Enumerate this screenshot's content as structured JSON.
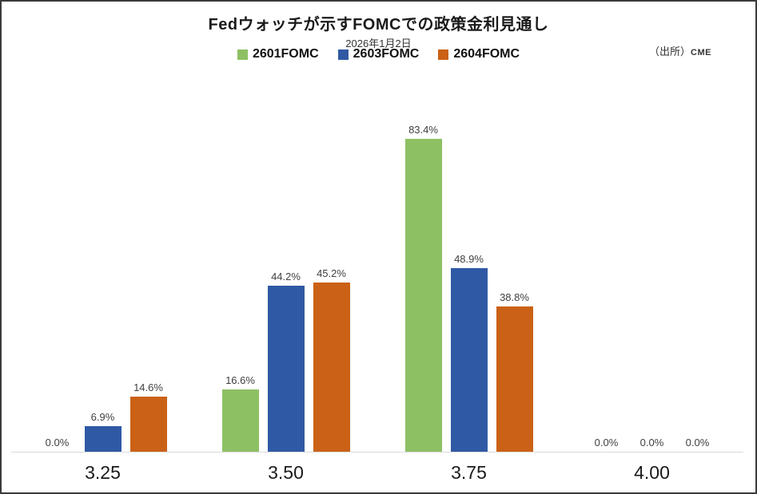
{
  "window": {
    "background": "#ffffff",
    "border_color": "#3a3a3a"
  },
  "chart_data": {
    "type": "bar",
    "title": "Fedウォッチが示すFOMCでの政策金利見通し",
    "subtitle": "2026年1月2日",
    "source_label": "（出所）",
    "source_value": "CME",
    "categories": [
      "3.25",
      "3.50",
      "3.75",
      "4.00"
    ],
    "series": [
      {
        "name": "2601FOMC",
        "color": "#8DC063",
        "values": [
          0.0,
          16.6,
          83.4,
          0.0
        ]
      },
      {
        "name": "2603FOMC",
        "color": "#3059A5",
        "values": [
          6.9,
          44.2,
          48.9,
          0.0
        ]
      },
      {
        "name": "2604FOMC",
        "color": "#CA6116",
        "values": [
          14.6,
          45.2,
          38.8,
          0.0
        ]
      }
    ],
    "value_labels": [
      [
        "0.0%",
        "6.9%",
        "14.6%"
      ],
      [
        "16.6%",
        "44.2%",
        "45.2%"
      ],
      [
        "83.4%",
        "48.9%",
        "38.8%"
      ],
      [
        "0.0%",
        "0.0%",
        "0.0%"
      ]
    ],
    "value_suffix": "%",
    "ylim": [
      0,
      100
    ],
    "grid": false,
    "legend_position": "top-center",
    "axis_line_color": "#D9D9D9",
    "value_label_color": "#404040"
  }
}
